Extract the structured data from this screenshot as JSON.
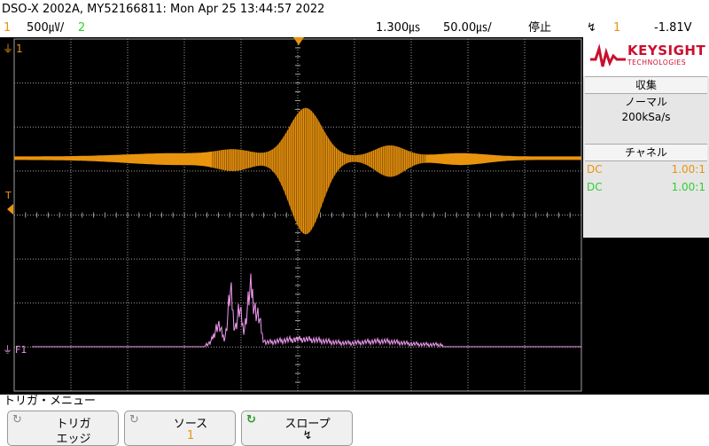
{
  "header": {
    "title": "DSO-X 2002A, MY52166811: Mon Apr 25 13:44:57 2022"
  },
  "status": {
    "ch1_num": "1",
    "ch1_scale": "500㎶/",
    "ch2_num": "2",
    "timebase_delay": "1.300㎲",
    "timebase_scale": "50.00㎲/",
    "run_state": "停止",
    "trigger_slope_symbol": "↯",
    "trigger_source": "1",
    "trigger_level": "-1.81V"
  },
  "markers": {
    "ch1_marker": "1",
    "trigger_marker": "T",
    "math_marker": "F1"
  },
  "panel": {
    "brand_name": "KEYSIGHT",
    "brand_sub": "TECHNOLOGIES",
    "acq_header": "収集",
    "acq_mode": "ノーマル",
    "acq_rate": "200kSa/s",
    "chan_header": "チャネル",
    "channels": [
      {
        "coupling": "DC",
        "probe": "1.00:1",
        "color": "#e8940e"
      },
      {
        "coupling": "DC",
        "probe": "1.00:1",
        "color": "#33cc33"
      }
    ]
  },
  "menu": {
    "title": "トリガ・メニュー"
  },
  "softkeys": [
    {
      "label": "トリガ",
      "value": "エッジ"
    },
    {
      "label": "ソース",
      "value": "1"
    },
    {
      "label": "スロープ",
      "value": "↯"
    }
  ],
  "colors": {
    "ch1": "#e8940e",
    "ch2": "#33cc33",
    "math": "#f09af0",
    "grid": "#a0a0a0"
  }
}
